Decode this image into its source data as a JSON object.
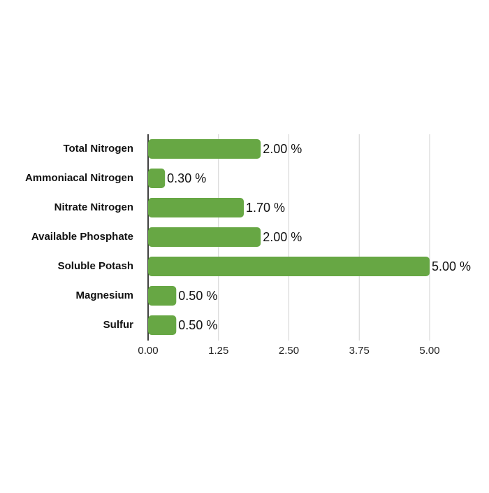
{
  "chart_data": {
    "type": "bar",
    "orientation": "horizontal",
    "categories": [
      "Total Nitrogen",
      "Ammoniacal Nitrogen",
      "Nitrate Nitrogen",
      "Available Phosphate",
      "Soluble Potash",
      "Magnesium",
      "Sulfur"
    ],
    "values": [
      2.0,
      0.3,
      1.7,
      2.0,
      5.0,
      0.5,
      0.5
    ],
    "value_labels": [
      "2.00 %",
      "0.30 %",
      "1.70 %",
      "2.00 %",
      "5.00 %",
      "0.50 %",
      "0.50 %"
    ],
    "color": "#67a744",
    "xlim": [
      0,
      5
    ],
    "xticks": [
      {
        "value": 0,
        "label": "0.00"
      },
      {
        "value": 1.25,
        "label": "1.25"
      },
      {
        "value": 2.5,
        "label": "2.50"
      },
      {
        "value": 3.75,
        "label": "3.75"
      },
      {
        "value": 5,
        "label": "5.00"
      }
    ],
    "grid": true
  }
}
